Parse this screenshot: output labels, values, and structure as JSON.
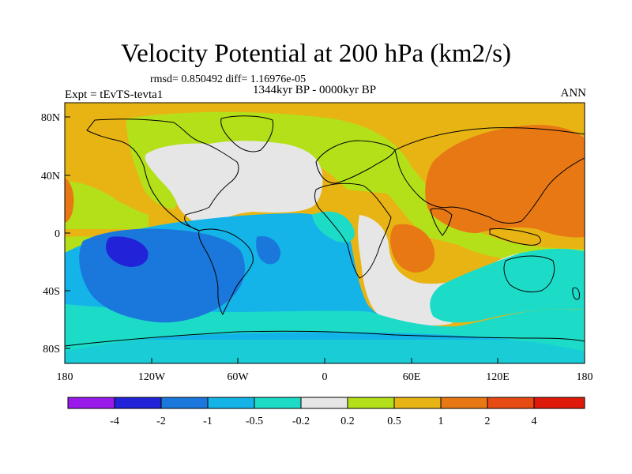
{
  "header": {
    "title": "Velocity Potential at 200 hPa (km2/s)",
    "stats": "rmsd= 0.850492  diff= 1.16976e-05",
    "period": "1344kyr BP - 0000kyr BP",
    "experiment": "Expt = tEvTS-tevta1",
    "season": "ANN"
  },
  "map": {
    "lon_ticks": [
      "180",
      "120W",
      "60W",
      "0",
      "60E",
      "120E",
      "180"
    ],
    "lat_ticks": [
      "80N",
      "40N",
      "0",
      "40S",
      "80S"
    ]
  },
  "colorbar": {
    "labels": [
      "-4",
      "-2",
      "-1",
      "-0.5",
      "-0.2",
      "0.2",
      "0.5",
      "1",
      "2",
      "4"
    ],
    "colors": [
      "#9a1aec",
      "#2222d8",
      "#1a78dc",
      "#14b4e8",
      "#1cdcc8",
      "#e6e6e6",
      "#b4e01a",
      "#e8b414",
      "#e87814",
      "#e84a14",
      "#e01a0a"
    ]
  },
  "fields": {
    "contour_colors": {
      "neg4": "#2222d8",
      "neg2": "#1a78dc",
      "neg1": "#14b4e8",
      "neg05": "#1cdcc8",
      "zero": "#e6e6e6",
      "pos02": "#b4e01a",
      "pos05": "#e8b414",
      "pos1": "#e87814"
    }
  }
}
